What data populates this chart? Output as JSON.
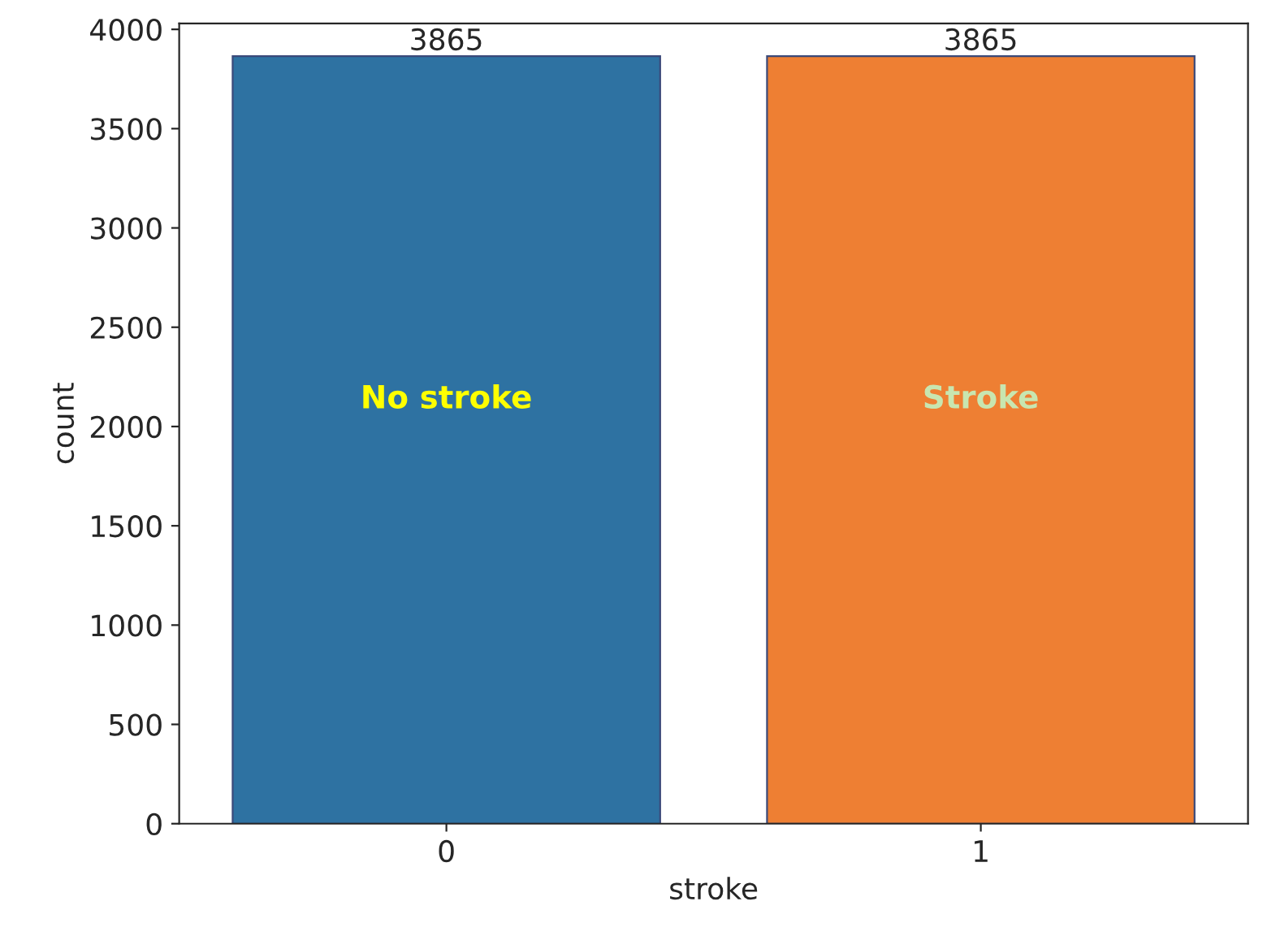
{
  "chart_data": {
    "type": "bar",
    "xlabel": "stroke",
    "ylabel": "count",
    "categories": [
      "0",
      "1"
    ],
    "values": [
      3865,
      3865
    ],
    "colors": [
      "#2e72a2",
      "#ee7f33"
    ],
    "data_labels": true,
    "ylim": [
      0,
      4030
    ],
    "yticks": [
      0,
      500,
      1000,
      1500,
      2000,
      2500,
      3000,
      3500,
      4000
    ],
    "grid": false,
    "annotations": [
      "No stroke",
      "Stroke"
    ]
  }
}
